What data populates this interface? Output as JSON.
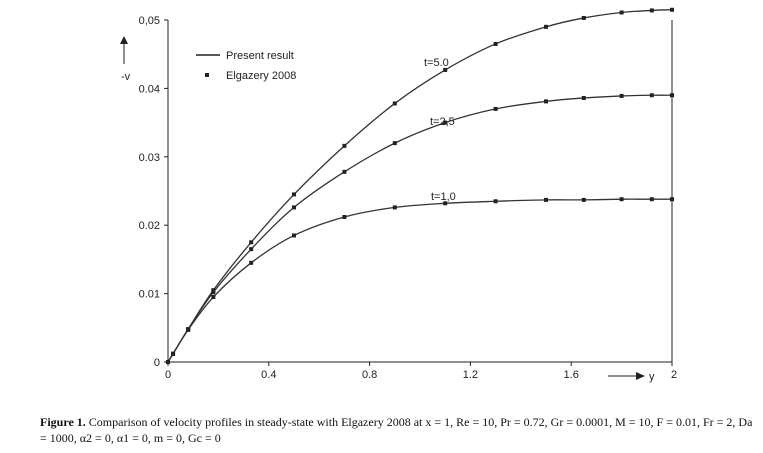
{
  "chart_data": {
    "type": "line",
    "xlim": [
      0,
      2
    ],
    "ylim": [
      0,
      0.05
    ],
    "x_ticks": [
      "0",
      "0.4",
      "0.8",
      "1.2",
      "1.6",
      "2"
    ],
    "y_ticks": [
      "0",
      "0.01",
      "0.02",
      "0.03",
      "0.04",
      "0,05"
    ],
    "xlabel": "y",
    "ylabel": "-v",
    "legend": {
      "position": "top-left",
      "line_label": "Present result",
      "marker_label": "Elgazery 2008"
    },
    "series": [
      {
        "name": "t=5.0",
        "x": [
          0,
          0.02,
          0.08,
          0.18,
          0.33,
          0.5,
          0.7,
          0.9,
          1.1,
          1.3,
          1.5,
          1.65,
          1.8,
          1.92,
          2.0
        ],
        "y": [
          0,
          0.0012,
          0.0048,
          0.0105,
          0.0175,
          0.0245,
          0.0316,
          0.0378,
          0.0427,
          0.0465,
          0.049,
          0.0503,
          0.0511,
          0.0514,
          0.0515
        ]
      },
      {
        "name": "t=2.5",
        "x": [
          0,
          0.02,
          0.08,
          0.18,
          0.33,
          0.5,
          0.7,
          0.9,
          1.1,
          1.3,
          1.5,
          1.65,
          1.8,
          1.92,
          2.0
        ],
        "y": [
          0,
          0.0012,
          0.0048,
          0.0102,
          0.0165,
          0.0226,
          0.0278,
          0.032,
          0.035,
          0.037,
          0.0381,
          0.0386,
          0.0389,
          0.039,
          0.039
        ]
      },
      {
        "name": "t=1.0",
        "x": [
          0,
          0.02,
          0.08,
          0.18,
          0.33,
          0.5,
          0.7,
          0.9,
          1.1,
          1.3,
          1.5,
          1.65,
          1.8,
          1.92,
          2.0
        ],
        "y": [
          0,
          0.0012,
          0.0047,
          0.0095,
          0.0145,
          0.0185,
          0.0212,
          0.0226,
          0.0232,
          0.0235,
          0.0237,
          0.0237,
          0.0238,
          0.0238,
          0.0238
        ]
      }
    ],
    "annotations": [
      "t=5.0",
      "t=2,5",
      "t=1,0"
    ]
  },
  "caption": {
    "label": "Figure 1.",
    "text": "Comparison of velocity profiles in steady-state with Elgazery 2008 at x = 1, Re = 10, Pr = 0.72, Gr = 0.0001, M = 10, F = 0.01, Fr = 2, Da = 1000, α2 = 0, α1 = 0, m = 0, Gc = 0"
  }
}
